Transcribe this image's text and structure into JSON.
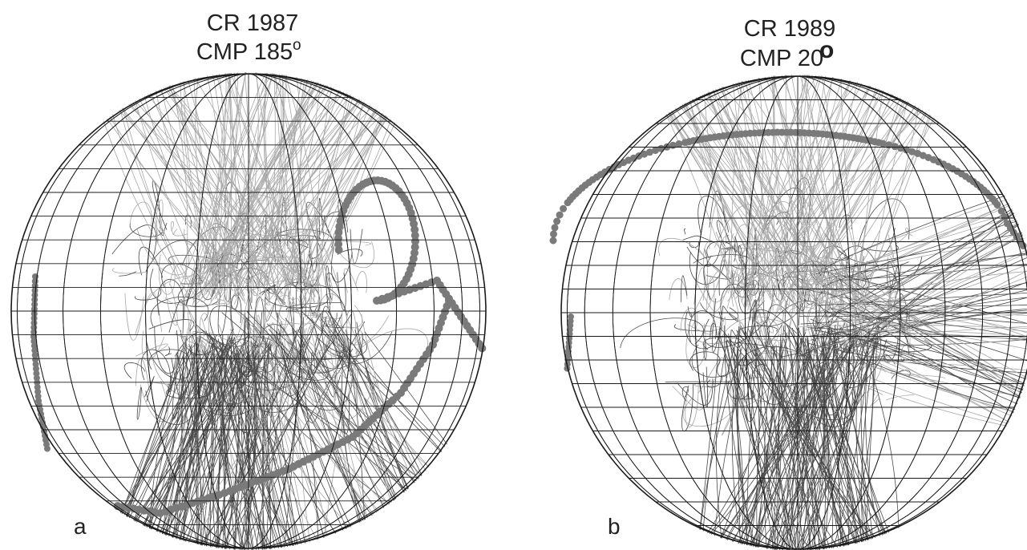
{
  "panels": [
    {
      "id": "a",
      "label": "a",
      "title_line1": "CR 1987",
      "title_line2": "CMP 185",
      "degree_mark": "o"
    },
    {
      "id": "b",
      "label": "b",
      "title_line1": "CR 1989",
      "title_line2": "CMP 20",
      "degree_mark": "o"
    }
  ],
  "colors": {
    "grid": "#1a1a1a",
    "dark_field_lines": "#4a4a4a",
    "light_field_lines": "#a8a8a8",
    "neutral_line": "#7a7a7a"
  }
}
